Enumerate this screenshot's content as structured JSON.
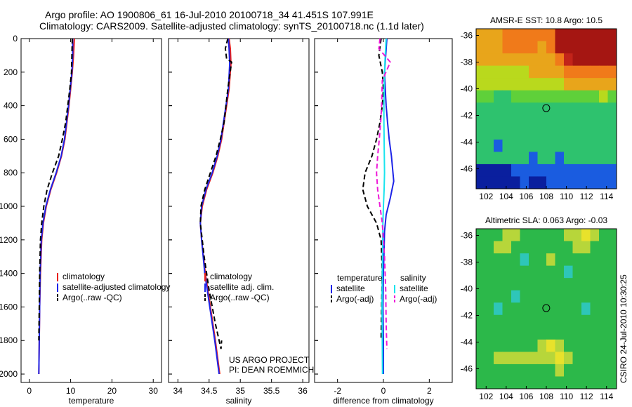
{
  "header": {
    "title_line1": "Argo profile: AO 1900806_61 16-Jul-2010 20100718_34 41.451S 107.991E",
    "title_line2": "Climatology: CARS2009. Satellite-adjusted climatology: synTS_20100718.nc (1.1d later)",
    "stamp": "CSIRO 24-Jul-2010 10:30:25",
    "project_line1": "US ARGO PROJECT",
    "project_line2": "PI: DEAN ROEMMICH"
  },
  "colors": {
    "climatology": "#e8201c",
    "satellite": "#1d24e8",
    "argo": "#000000",
    "salinity_satellite": "#19e4ee",
    "salinity_argo": "#ee19d8"
  },
  "chart_data": [
    {
      "type": "line",
      "panel": "temperature",
      "xlabel": "temperature",
      "ylabel": "",
      "xlim": [
        -2,
        32
      ],
      "ylim": [
        2050,
        0
      ],
      "xticks": [
        0,
        10,
        20,
        30
      ],
      "yticks": [
        0,
        200,
        400,
        600,
        800,
        1000,
        1200,
        1400,
        1600,
        1800,
        2000
      ],
      "legend": [
        "climatology",
        "satellite-adjusted climatology",
        "Argo(..raw -QC)"
      ],
      "legend_position": "lower-right",
      "series": [
        {
          "name": "climatology",
          "style": "solid",
          "x": [
            10.9,
            10.7,
            10.4,
            10.0,
            9.6,
            9.1,
            8.6,
            7.8,
            6.6,
            5.2,
            4.1,
            3.4,
            3.0,
            2.7,
            2.5,
            2.4,
            2.3
          ],
          "y": [
            0,
            100,
            200,
            300,
            400,
            500,
            600,
            700,
            800,
            900,
            1000,
            1100,
            1200,
            1400,
            1600,
            1800,
            2000
          ]
        },
        {
          "name": "satellite-adjusted climatology",
          "style": "solid",
          "x": [
            10.5,
            10.5,
            10.3,
            9.9,
            9.5,
            9.0,
            8.5,
            7.7,
            6.5,
            5.1,
            4.0,
            3.3,
            2.9,
            2.6,
            2.5,
            2.4,
            2.3
          ],
          "y": [
            0,
            100,
            200,
            300,
            400,
            500,
            600,
            700,
            800,
            900,
            1000,
            1100,
            1200,
            1400,
            1600,
            1800,
            2000
          ]
        },
        {
          "name": "Argo(..raw -QC)",
          "style": "dashed",
          "x": [
            10.4,
            10.3,
            10.2,
            9.8,
            9.3,
            8.8,
            8.0,
            7.1,
            5.6,
            4.3,
            3.5,
            3.0,
            2.7,
            2.5,
            2.4,
            2.3
          ],
          "y": [
            0,
            100,
            200,
            300,
            400,
            500,
            600,
            700,
            800,
            900,
            1000,
            1100,
            1200,
            1400,
            1600,
            1800
          ]
        }
      ]
    },
    {
      "type": "line",
      "panel": "salinity",
      "xlabel": "salinity",
      "ylabel": "",
      "xlim": [
        33.85,
        36.1
      ],
      "ylim": [
        2050,
        0
      ],
      "xticks": [
        34,
        34.5,
        35,
        35.5,
        36
      ],
      "xticklabels": [
        "34",
        "34.5",
        "35",
        "35.5",
        "36"
      ],
      "legend": [
        "climatology",
        "satellite adj. clim.",
        "Argo(..raw -QC)"
      ],
      "legend_position": "lower-right",
      "series": [
        {
          "name": "climatology",
          "style": "solid",
          "x": [
            34.82,
            34.84,
            34.85,
            34.82,
            34.78,
            34.74,
            34.7,
            34.64,
            34.56,
            34.46,
            34.39,
            34.36,
            34.38,
            34.44,
            34.52,
            34.6,
            34.67
          ],
          "y": [
            0,
            60,
            150,
            300,
            400,
            500,
            600,
            700,
            800,
            900,
            1000,
            1100,
            1200,
            1400,
            1600,
            1800,
            2000
          ]
        },
        {
          "name": "satellite adj. clim.",
          "style": "solid",
          "x": [
            34.81,
            34.82,
            34.83,
            34.81,
            34.77,
            34.73,
            34.69,
            34.63,
            34.55,
            34.45,
            34.38,
            34.36,
            34.38,
            34.43,
            34.51,
            34.59,
            34.66
          ],
          "y": [
            0,
            60,
            150,
            300,
            400,
            500,
            600,
            700,
            800,
            900,
            1000,
            1100,
            1200,
            1400,
            1600,
            1800,
            2000
          ]
        },
        {
          "name": "Argo(..raw -QC)",
          "style": "dashed",
          "x": [
            34.8,
            34.76,
            34.78,
            34.86,
            34.8,
            34.74,
            34.68,
            34.61,
            34.52,
            34.43,
            34.37,
            34.36,
            34.42,
            34.5,
            34.6,
            34.69,
            34.7
          ],
          "y": [
            0,
            60,
            120,
            140,
            300,
            500,
            600,
            700,
            800,
            900,
            1000,
            1100,
            1300,
            1500,
            1700,
            1850,
            1800
          ]
        }
      ]
    },
    {
      "type": "line",
      "panel": "difference",
      "xlabel": "difference from climatology",
      "ylabel": "",
      "xlim": [
        -3,
        3
      ],
      "ylim": [
        2050,
        0
      ],
      "xticks": [
        -2,
        0,
        2
      ],
      "legend_temperature_header": "temperature",
      "legend_salinity_header": "salinity",
      "legend": [
        "satellite",
        "Argo(-adj)",
        "satellite",
        "Argo(-adj)"
      ],
      "legend_position": "lower",
      "series": [
        {
          "name": "temperature satellite",
          "style": "solid",
          "x": [
            0.15,
            0.1,
            0.05,
            0.08,
            0.12,
            0.18,
            0.25,
            0.35,
            0.45,
            0.3,
            0.12,
            0.05,
            0.03,
            0.0,
            -0.02,
            0.0,
            0.0
          ],
          "y": [
            0,
            100,
            200,
            300,
            400,
            500,
            600,
            700,
            850,
            950,
            1050,
            1150,
            1250,
            1400,
            1600,
            1800,
            2000
          ]
        },
        {
          "name": "temperature Argo(-adj)",
          "style": "dashed",
          "x": [
            -0.1,
            -0.2,
            -0.05,
            0.0,
            -0.05,
            -0.15,
            -0.3,
            -0.5,
            -0.8,
            -0.9,
            -0.7,
            -0.3,
            -0.1,
            -0.05,
            -0.08,
            -0.1
          ],
          "y": [
            0,
            100,
            200,
            300,
            400,
            500,
            600,
            700,
            800,
            900,
            1000,
            1100,
            1200,
            1400,
            1600,
            1800
          ]
        },
        {
          "name": "salinity satellite",
          "style": "solid",
          "x": [
            0.12,
            0.08,
            0.05,
            0.03,
            0.02,
            0.02,
            0.03,
            0.04,
            0.05,
            0.03,
            0.0,
            -0.02,
            -0.03,
            -0.05,
            -0.06,
            -0.05,
            -0.04
          ],
          "y": [
            0,
            100,
            200,
            300,
            400,
            500,
            600,
            700,
            800,
            900,
            1000,
            1100,
            1200,
            1400,
            1600,
            1800,
            2000
          ]
        },
        {
          "name": "salinity Argo(-adj)",
          "style": "dashed",
          "x": [
            -0.15,
            -0.2,
            0.3,
            -0.05,
            -0.08,
            -0.12,
            -0.18,
            -0.25,
            -0.3,
            -0.25,
            -0.15,
            -0.05,
            0.05,
            0.1,
            0.12,
            0.15
          ],
          "y": [
            0,
            60,
            140,
            250,
            400,
            500,
            600,
            700,
            800,
            900,
            1000,
            1100,
            1300,
            1500,
            1700,
            1850
          ]
        }
      ]
    },
    {
      "type": "heatmap",
      "panel": "amsre-sst",
      "title": "AMSR-E SST: 10.8 Argo: 10.5",
      "xlim": [
        101,
        115
      ],
      "ylim": [
        -47.5,
        -35.5
      ],
      "xticks": [
        102,
        104,
        106,
        108,
        110,
        112,
        114
      ],
      "yticks": [
        -36,
        -38,
        -40,
        -42,
        -44,
        -46
      ],
      "marker": {
        "x": 107.99,
        "y": -41.45
      },
      "rows": [
        [
          5,
          5,
          5,
          6,
          6,
          6,
          6,
          6,
          6,
          9,
          9,
          9,
          9,
          9,
          9,
          9
        ],
        [
          5,
          5,
          5,
          6,
          6,
          6,
          6,
          5,
          6,
          9,
          9,
          9,
          9,
          9,
          9,
          9
        ],
        [
          5,
          5,
          5,
          5,
          5,
          5,
          5,
          5,
          5,
          6,
          8,
          9,
          9,
          9,
          9,
          9
        ],
        [
          4,
          4,
          4,
          4,
          4,
          4,
          5,
          5,
          5,
          5,
          6,
          6,
          6,
          6,
          6,
          6
        ],
        [
          4,
          4,
          4,
          4,
          4,
          4,
          4,
          4,
          4,
          4,
          5,
          5,
          5,
          5,
          5,
          5
        ],
        [
          3,
          3,
          2,
          2,
          3,
          3,
          3,
          3,
          3,
          3,
          3,
          3,
          3,
          3,
          4,
          3
        ],
        [
          2,
          2,
          2,
          2,
          2,
          2,
          2,
          2,
          2,
          2,
          2,
          2,
          2,
          2,
          2,
          2
        ],
        [
          2,
          2,
          2,
          2,
          2,
          2,
          2,
          2,
          2,
          2,
          2,
          2,
          2,
          2,
          2,
          2
        ],
        [
          2,
          2,
          2,
          2,
          2,
          2,
          2,
          2,
          2,
          2,
          2,
          2,
          2,
          2,
          2,
          2
        ],
        [
          2,
          2,
          1,
          2,
          2,
          2,
          2,
          2,
          2,
          2,
          2,
          2,
          2,
          2,
          2,
          2
        ],
        [
          2,
          2,
          2,
          2,
          2,
          2,
          1,
          2,
          2,
          1,
          2,
          2,
          2,
          2,
          2,
          2
        ],
        [
          0,
          0,
          0,
          0,
          1,
          1,
          1,
          1,
          1,
          1,
          1,
          1,
          1,
          1,
          1,
          1
        ],
        [
          0,
          0,
          0,
          0,
          0,
          1,
          0,
          0,
          1,
          1,
          1,
          1,
          1,
          1,
          1,
          1
        ]
      ]
    },
    {
      "type": "heatmap",
      "panel": "altimetric-sla",
      "title": "Altimetric SLA: 0.063 Argo: -0.03",
      "xlim": [
        101,
        115
      ],
      "ylim": [
        -47.5,
        -35.5
      ],
      "xticks": [
        102,
        104,
        106,
        108,
        110,
        112,
        114
      ],
      "yticks": [
        -36,
        -38,
        -40,
        -42,
        -44,
        -46
      ],
      "marker": {
        "x": 107.99,
        "y": -41.45
      },
      "rows": [
        [
          2,
          2,
          2,
          3,
          3,
          2,
          2,
          2,
          2,
          2,
          3,
          3,
          4,
          3,
          2,
          2
        ],
        [
          2,
          2,
          3,
          3,
          2,
          2,
          2,
          2,
          2,
          2,
          2,
          3,
          3,
          2,
          2,
          2
        ],
        [
          2,
          2,
          2,
          2,
          2,
          1,
          2,
          2,
          3,
          2,
          2,
          2,
          2,
          2,
          2,
          2
        ],
        [
          2,
          2,
          2,
          2,
          2,
          2,
          2,
          2,
          2,
          2,
          1,
          2,
          2,
          2,
          2,
          2
        ],
        [
          2,
          2,
          2,
          2,
          2,
          2,
          2,
          2,
          2,
          2,
          2,
          2,
          2,
          2,
          2,
          2
        ],
        [
          2,
          2,
          2,
          2,
          1,
          2,
          2,
          2,
          2,
          2,
          2,
          2,
          2,
          2,
          2,
          2
        ],
        [
          2,
          2,
          1,
          2,
          2,
          2,
          2,
          2,
          2,
          2,
          2,
          2,
          1,
          2,
          2,
          2
        ],
        [
          2,
          2,
          2,
          2,
          2,
          2,
          2,
          2,
          2,
          2,
          2,
          2,
          2,
          2,
          2,
          2
        ],
        [
          2,
          2,
          2,
          2,
          2,
          2,
          2,
          2,
          2,
          2,
          2,
          2,
          2,
          2,
          2,
          2
        ],
        [
          2,
          2,
          2,
          2,
          2,
          2,
          2,
          3,
          4,
          3,
          2,
          2,
          2,
          2,
          2,
          2
        ],
        [
          2,
          2,
          3,
          3,
          3,
          3,
          3,
          3,
          3,
          4,
          3,
          2,
          2,
          2,
          2,
          2
        ],
        [
          2,
          2,
          2,
          2,
          2,
          2,
          2,
          2,
          2,
          3,
          2,
          2,
          2,
          2,
          2,
          2
        ],
        [
          2,
          2,
          2,
          2,
          2,
          2,
          2,
          2,
          2,
          2,
          2,
          2,
          2,
          2,
          2,
          2
        ]
      ]
    }
  ]
}
